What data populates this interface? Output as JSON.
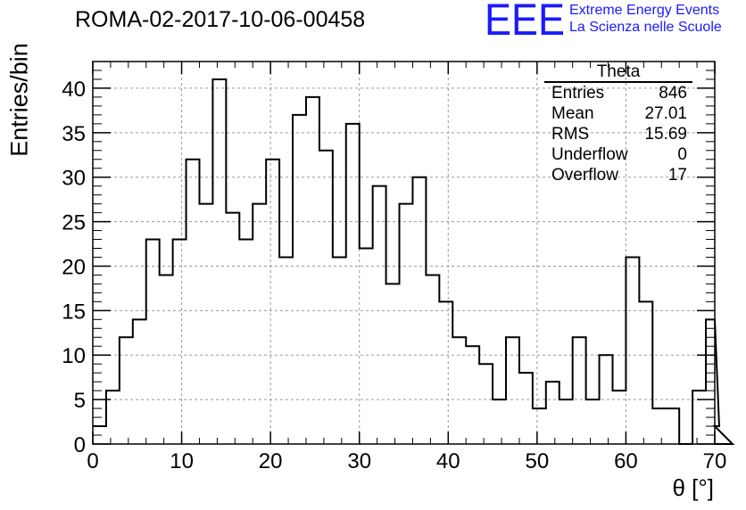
{
  "header": {
    "run_title": "ROMA-02-2017-10-06-00458",
    "logo_text": "EEE",
    "project_line1": "Extreme Energy Events",
    "project_line2": "La Scienza nelle Scuole"
  },
  "colors": {
    "logo": "#1a1aff",
    "line": "#000000",
    "grid": "#9a9a9a"
  },
  "stats": {
    "title": "Theta",
    "rows": [
      {
        "label": "Entries",
        "value": "846"
      },
      {
        "label": "Mean",
        "value": "27.01"
      },
      {
        "label": "RMS",
        "value": "15.69"
      },
      {
        "label": "Underflow",
        "value": "0"
      },
      {
        "label": "Overflow",
        "value": "17"
      }
    ]
  },
  "chart_data": {
    "type": "bar",
    "style": "step-histogram",
    "xlabel": "θ [°]",
    "ylabel": "Entries/bin",
    "xlim": [
      0,
      70
    ],
    "ylim": [
      0,
      43
    ],
    "grid": true,
    "bin_width": 1.5,
    "x_ticks": [
      "0",
      "10",
      "20",
      "30",
      "40",
      "50",
      "60",
      "70"
    ],
    "y_ticks": [
      "0",
      "5",
      "10",
      "15",
      "20",
      "25",
      "30",
      "35",
      "40"
    ],
    "x_tick_values": [
      0,
      10,
      20,
      30,
      40,
      50,
      60,
      70
    ],
    "y_tick_values": [
      0,
      5,
      10,
      15,
      20,
      25,
      30,
      35,
      40
    ],
    "values": [
      2,
      6,
      12,
      14,
      23,
      19,
      23,
      32,
      27,
      41,
      26,
      23,
      27,
      32,
      21,
      37,
      39,
      33,
      21,
      36,
      22,
      29,
      18,
      27,
      30,
      19,
      16,
      12,
      11,
      9,
      5,
      12,
      8,
      4,
      7,
      5,
      12,
      5,
      10,
      6,
      21,
      16,
      4,
      4,
      0,
      6,
      14,
      2,
      0
    ]
  }
}
